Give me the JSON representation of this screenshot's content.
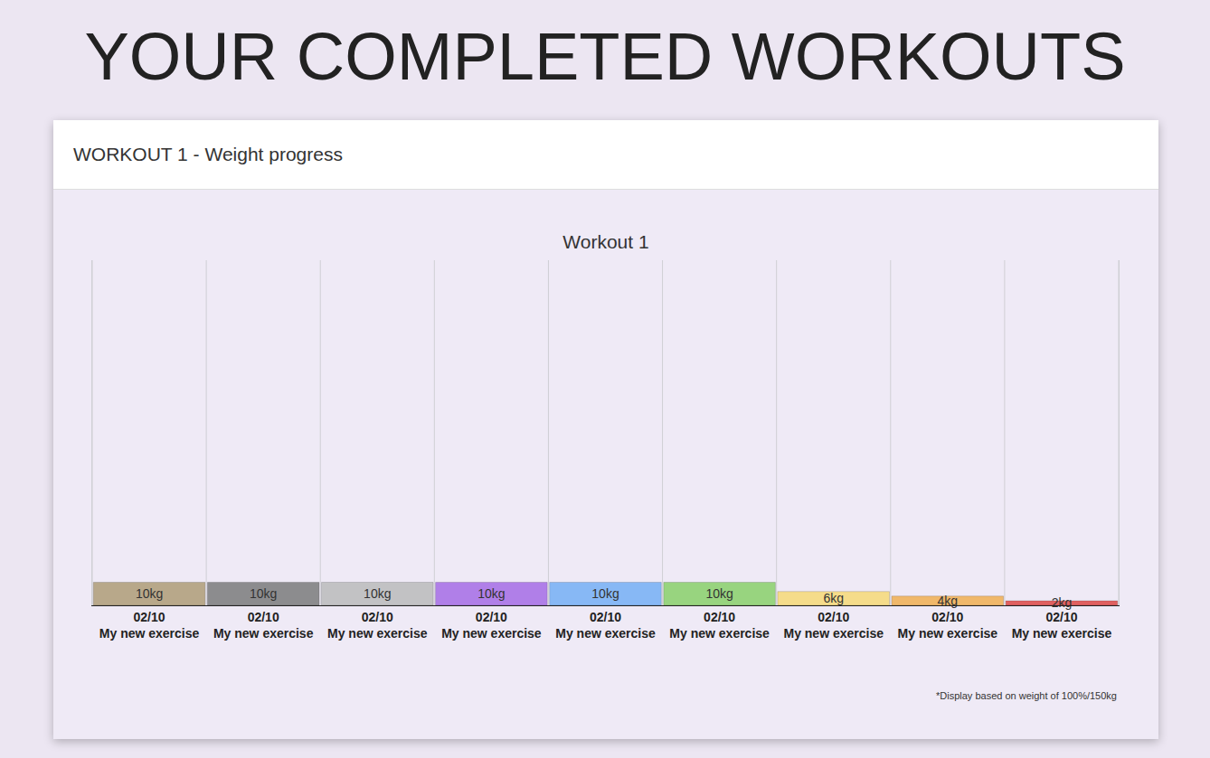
{
  "header": {
    "heading": "YOUR COMPLETED WORKOUTS",
    "card_title": "WORKOUT 1 - Weight progress"
  },
  "chart_data": {
    "type": "bar",
    "title": "Workout 1",
    "categories": [
      "02/10\nMy new exercise",
      "02/10\nMy new exercise",
      "02/10\nMy new exercise",
      "02/10\nMy new exercise",
      "02/10\nMy new exercise",
      "02/10\nMy new exercise",
      "02/10\nMy new exercise",
      "02/10\nMy new exercise",
      "02/10\nMy new exercise"
    ],
    "values": [
      10,
      10,
      10,
      10,
      10,
      10,
      6,
      4,
      2
    ],
    "value_labels": [
      "10kg",
      "10kg",
      "10kg",
      "10kg",
      "10kg",
      "10kg",
      "6kg",
      "4kg",
      "2kg"
    ],
    "colors": [
      "#b8a88a",
      "#8c8c8e",
      "#c2c2c4",
      "#b07fe8",
      "#87b8f5",
      "#98d47f",
      "#f5dc8a",
      "#f0b86a",
      "#e06060"
    ],
    "ylim": [
      0,
      150
    ],
    "data_labels": true,
    "tick_labels": "x",
    "grid": true,
    "annotations": [
      "*Display based on weight of 100%/150kg"
    ]
  }
}
